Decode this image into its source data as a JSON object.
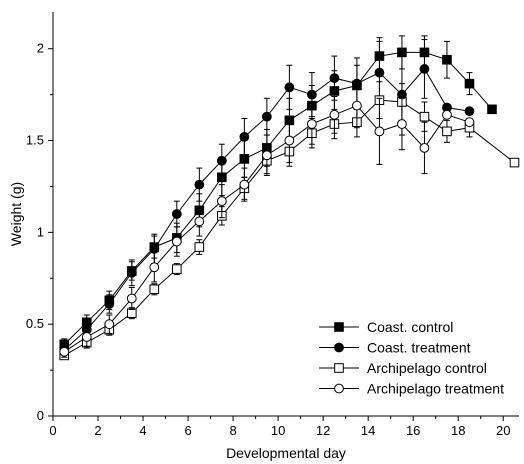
{
  "chart_data": {
    "type": "line",
    "xlabel": "Developmental day",
    "ylabel": "Weight (g)",
    "xlim": [
      0,
      20.7
    ],
    "ylim": [
      0,
      2.2
    ],
    "xticks": [
      0,
      2,
      4,
      6,
      8,
      10,
      12,
      14,
      16,
      18,
      20
    ],
    "yticks": [
      0,
      0.5,
      1,
      1.5,
      2
    ],
    "ytick_labels": [
      "0",
      "0.5",
      "1",
      "1.5",
      "2"
    ],
    "grid": false,
    "legend_position": "bottom-right",
    "series": [
      {
        "name": "Coast. control",
        "marker": "filled-square",
        "x": [
          0.5,
          1.5,
          2.5,
          3.5,
          4.5,
          5.5,
          6.5,
          7.5,
          8.5,
          9.5,
          10.5,
          11.5,
          12.5,
          13.5,
          14.5,
          15.5,
          16.5,
          17.5,
          18.5,
          19.5
        ],
        "y": [
          0.39,
          0.51,
          0.63,
          0.79,
          0.92,
          0.97,
          1.12,
          1.3,
          1.4,
          1.46,
          1.61,
          1.69,
          1.77,
          1.8,
          1.96,
          1.98,
          1.98,
          1.94,
          1.81,
          1.67
        ],
        "err": [
          0.03,
          0.04,
          0.05,
          0.05,
          0.06,
          0.08,
          0.09,
          0.1,
          0.1,
          0.1,
          0.12,
          0.11,
          0.11,
          0.11,
          0.1,
          0.09,
          0.09,
          0.1,
          0.06,
          0.0
        ]
      },
      {
        "name": "Coast. treatment",
        "marker": "filled-circle",
        "x": [
          0.5,
          1.5,
          2.5,
          3.5,
          4.5,
          5.5,
          6.5,
          7.5,
          8.5,
          9.5,
          10.5,
          11.5,
          12.5,
          13.5,
          14.5,
          15.5,
          16.5,
          17.5,
          18.5
        ],
        "y": [
          0.36,
          0.47,
          0.61,
          0.78,
          0.91,
          1.1,
          1.26,
          1.39,
          1.52,
          1.63,
          1.79,
          1.75,
          1.84,
          1.81,
          1.87,
          1.75,
          1.89,
          1.68,
          1.66
        ],
        "err": [
          0.03,
          0.04,
          0.05,
          0.07,
          0.08,
          0.07,
          0.09,
          0.09,
          0.1,
          0.1,
          0.12,
          0.12,
          0.12,
          0.14,
          0.17,
          0.22,
          0.16,
          0.0,
          0.0
        ]
      },
      {
        "name": "Archipelago control",
        "marker": "open-square",
        "x": [
          0.5,
          1.5,
          2.5,
          3.5,
          4.5,
          5.5,
          6.5,
          7.5,
          8.5,
          9.5,
          10.5,
          11.5,
          12.5,
          13.5,
          14.5,
          15.5,
          16.5,
          17.5,
          18.5,
          20.5
        ],
        "y": [
          0.33,
          0.4,
          0.47,
          0.56,
          0.69,
          0.8,
          0.92,
          1.09,
          1.24,
          1.39,
          1.44,
          1.54,
          1.59,
          1.6,
          1.72,
          1.71,
          1.63,
          1.55,
          1.57,
          1.38
        ],
        "err": [
          0.02,
          0.03,
          0.03,
          0.03,
          0.03,
          0.03,
          0.04,
          0.05,
          0.06,
          0.07,
          0.08,
          0.08,
          0.08,
          0.08,
          0.1,
          0.1,
          0.08,
          0.06,
          0.05,
          0.0
        ]
      },
      {
        "name": "Archipelago treatment",
        "marker": "open-circle",
        "x": [
          0.5,
          1.5,
          2.5,
          3.5,
          4.5,
          5.5,
          6.5,
          7.5,
          8.5,
          9.5,
          10.5,
          11.5,
          12.5,
          13.5,
          14.5,
          15.5,
          16.5,
          17.5,
          18.5
        ],
        "y": [
          0.35,
          0.43,
          0.5,
          0.64,
          0.81,
          0.95,
          1.06,
          1.17,
          1.26,
          1.42,
          1.5,
          1.59,
          1.64,
          1.69,
          1.55,
          1.59,
          1.46,
          1.64,
          1.6
        ],
        "err": [
          0.03,
          0.05,
          0.05,
          0.06,
          0.08,
          0.08,
          0.08,
          0.09,
          0.09,
          0.11,
          0.12,
          0.11,
          0.1,
          0.12,
          0.18,
          0.14,
          0.14,
          0.0,
          0.0
        ]
      }
    ]
  }
}
